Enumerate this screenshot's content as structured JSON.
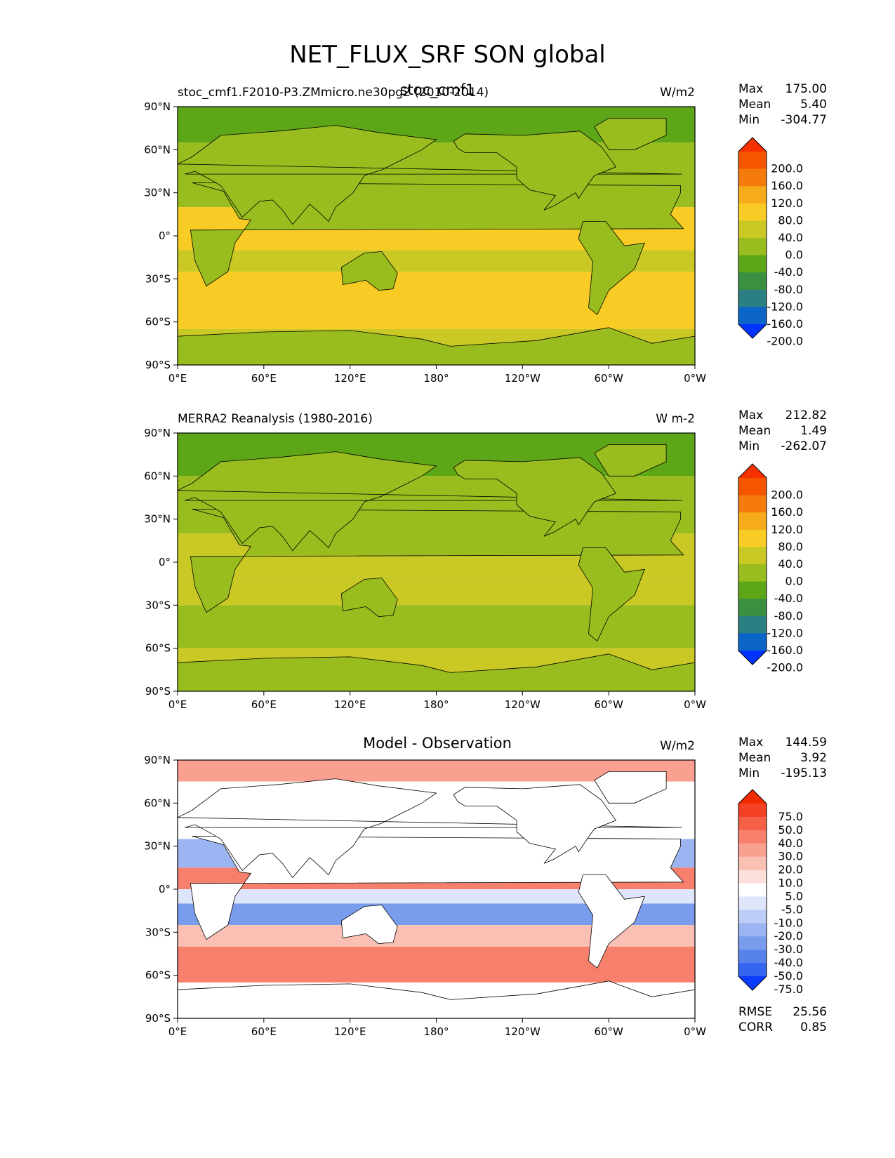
{
  "suptitle": "NET_FLUX_SRF SON global",
  "x_ticks": [
    "0°E",
    "60°E",
    "120°E",
    "180°",
    "120°W",
    "60°W",
    "0°W"
  ],
  "y_ticks": [
    "90°N",
    "60°N",
    "30°N",
    "0°",
    "30°S",
    "60°S",
    "90°S"
  ],
  "panels": [
    {
      "left_title": "stoc_cmf1.F2010-P3.ZMmicro.ne30pg2 (2010-2014)",
      "center_title": "stoc_cmf1",
      "units": "W/m2",
      "stats": [
        {
          "label": "Max",
          "value": "175.00"
        },
        {
          "label": "Mean",
          "value": "5.40"
        },
        {
          "label": "Min",
          "value": "-304.77"
        }
      ],
      "colorbar_labels": [
        "200.0",
        "160.0",
        "120.0",
        "80.0",
        "40.0",
        "0.0",
        "-40.0",
        "-80.0",
        "-120.0",
        "-160.0",
        "-200.0"
      ]
    },
    {
      "left_title": "MERRA2 Reanalysis (1980-2016)",
      "center_title": "",
      "units": "W m-2",
      "stats": [
        {
          "label": "Max",
          "value": "212.82"
        },
        {
          "label": "Mean",
          "value": "1.49"
        },
        {
          "label": "Min",
          "value": "-262.07"
        }
      ],
      "colorbar_labels": [
        "200.0",
        "160.0",
        "120.0",
        "80.0",
        "40.0",
        "0.0",
        "-40.0",
        "-80.0",
        "-120.0",
        "-160.0",
        "-200.0"
      ]
    },
    {
      "left_title": "",
      "center_title": "Model - Observation",
      "units": "W/m2",
      "stats": [
        {
          "label": "Max",
          "value": "144.59"
        },
        {
          "label": "Mean",
          "value": "3.92"
        },
        {
          "label": "Min",
          "value": "-195.13"
        }
      ],
      "colorbar_labels": [
        "75.0",
        "50.0",
        "40.0",
        "30.0",
        "20.0",
        "10.0",
        "5.0",
        "-5.0",
        "-10.0",
        "-20.0",
        "-30.0",
        "-40.0",
        "-50.0",
        "-75.0"
      ],
      "metrics": [
        {
          "label": "RMSE",
          "value": "25.56"
        },
        {
          "label": "CORR",
          "value": "0.85"
        }
      ]
    }
  ],
  "colors": {
    "flux_scale": [
      "#0033ff",
      "#0b64c8",
      "#2b7f82",
      "#3a9040",
      "#5da618",
      "#99bd1e",
      "#c9c824",
      "#f8cc24",
      "#f6ac1a",
      "#f57c0c",
      "#f65500",
      "#f73000"
    ],
    "diff_scale": [
      "#0a3cff",
      "#3464f0",
      "#5782ea",
      "#7a9ced",
      "#9cb5f2",
      "#bccdf6",
      "#dfe6fb",
      "#ffffff",
      "#fde0da",
      "#fbc0b4",
      "#f9a090",
      "#f7806c",
      "#f56048",
      "#f44024",
      "#f32a00"
    ]
  },
  "chart_data": [
    {
      "type": "heatmap",
      "projection": "PlateCarree global map with coastlines",
      "xlim": [
        0,
        360
      ],
      "ylim": [
        -90,
        90
      ],
      "title": "stoc_cmf1",
      "subtitle": "stoc_cmf1.F2010-P3.ZMmicro.ne30pg2 (2010-2014)",
      "units": "W/m2",
      "levels": [
        -200,
        -160,
        -120,
        -80,
        -40,
        0,
        40,
        80,
        120,
        160,
        200
      ],
      "stats": {
        "max": 175.0,
        "mean": 5.4,
        "min": -304.77
      }
    },
    {
      "type": "heatmap",
      "projection": "PlateCarree global map with coastlines",
      "xlim": [
        0,
        360
      ],
      "ylim": [
        -90,
        90
      ],
      "subtitle": "MERRA2 Reanalysis (1980-2016)",
      "units": "W m-2",
      "levels": [
        -200,
        -160,
        -120,
        -80,
        -40,
        0,
        40,
        80,
        120,
        160,
        200
      ],
      "stats": {
        "max": 212.82,
        "mean": 1.49,
        "min": -262.07
      }
    },
    {
      "type": "heatmap",
      "projection": "PlateCarree global map with coastlines",
      "xlim": [
        0,
        360
      ],
      "ylim": [
        -90,
        90
      ],
      "title": "Model - Observation",
      "units": "W/m2",
      "levels": [
        -75,
        -50,
        -40,
        -30,
        -20,
        -10,
        -5,
        5,
        10,
        20,
        30,
        40,
        50,
        75
      ],
      "stats": {
        "max": 144.59,
        "mean": 3.92,
        "min": -195.13
      },
      "metrics": {
        "rmse": 25.56,
        "corr": 0.85
      }
    }
  ]
}
